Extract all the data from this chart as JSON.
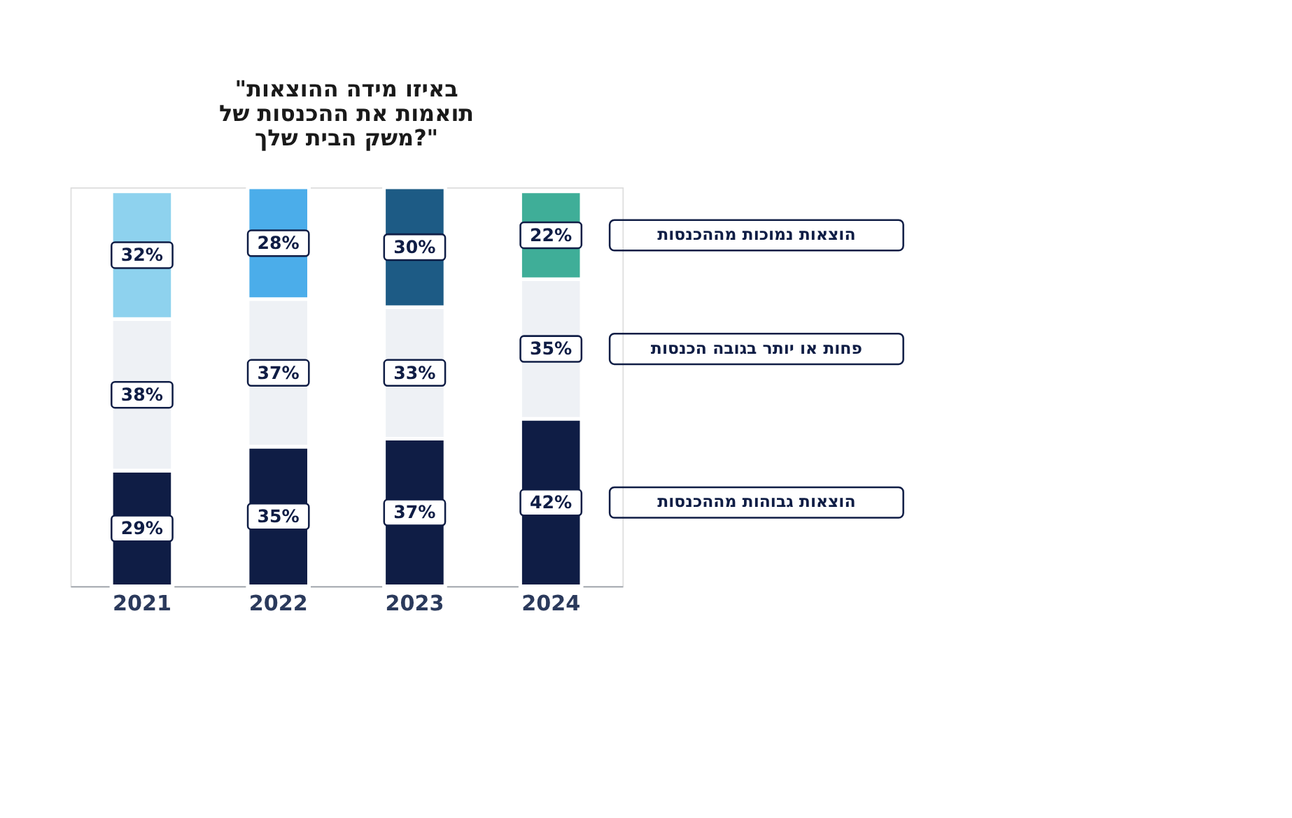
{
  "chart_data": {
    "type": "bar",
    "stacked": true,
    "title": "\"באיזו מידה ההוצאות תואמות את ההכנסות של משק הבית שלך?\"",
    "categories": [
      "2021",
      "2022",
      "2023",
      "2024"
    ],
    "series": [
      {
        "name": "הוצאות גבוהות מההכנסות",
        "color": "#0f1d45",
        "values": [
          29,
          35,
          37,
          42
        ],
        "value_labels": [
          "29%",
          "35%",
          "37%",
          "42%"
        ]
      },
      {
        "name": "פחות או יותר בגובה הכנסות",
        "color": "#eef1f5",
        "values": [
          38,
          37,
          33,
          35
        ],
        "value_labels": [
          "38%",
          "37%",
          "33%",
          "35%"
        ]
      },
      {
        "name": "הוצאות נמוכות מההכנסות",
        "colors": [
          "#8ed2ee",
          "#4badea",
          "#1d5b85",
          "#3fae98"
        ],
        "values": [
          32,
          28,
          30,
          22
        ],
        "value_labels": [
          "32%",
          "28%",
          "30%",
          "22%"
        ]
      }
    ],
    "legend": "right",
    "grid": false
  }
}
